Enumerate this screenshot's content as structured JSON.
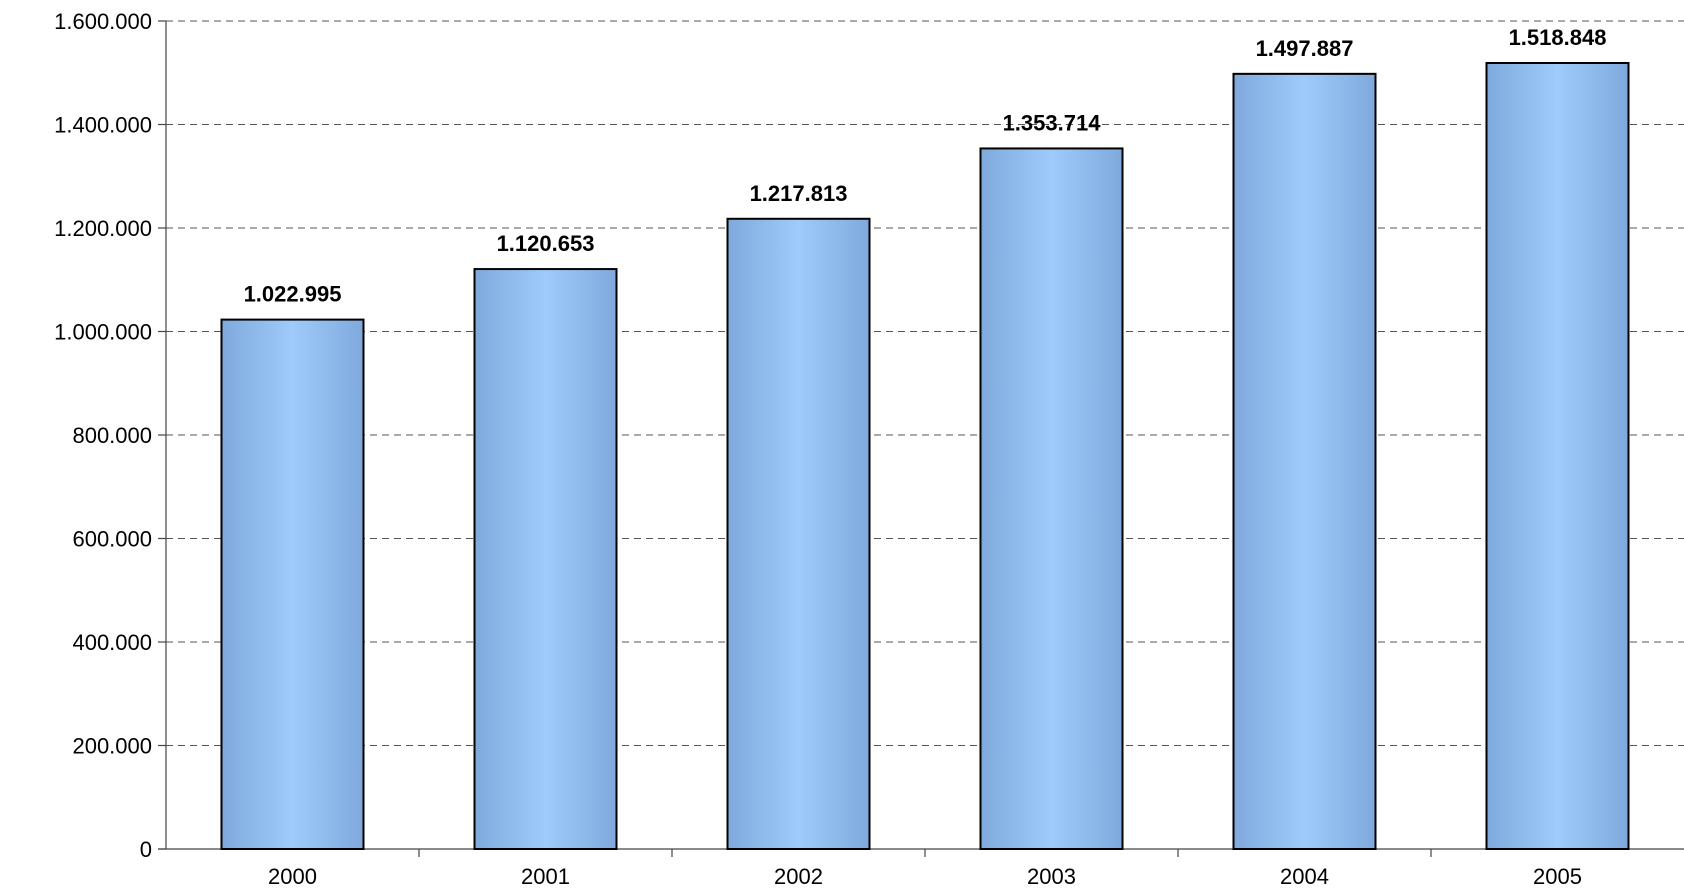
{
  "chart_data": {
    "type": "bar",
    "title": "",
    "xlabel": "",
    "ylabel": "",
    "categories": [
      "2000",
      "2001",
      "2002",
      "2003",
      "2004",
      "2005"
    ],
    "values": [
      1022995,
      1120653,
      1217813,
      1353714,
      1497887,
      1518848
    ],
    "value_labels": [
      "1.022.995",
      "1.120.653",
      "1.217.813",
      "1.353.714",
      "1.497.887",
      "1.518.848"
    ],
    "ylim": [
      0,
      1600000
    ],
    "y_ticks": [
      0,
      200000,
      400000,
      600000,
      800000,
      1000000,
      1200000,
      1400000,
      1600000
    ],
    "y_tick_labels": [
      "0",
      "200.000",
      "400.000",
      "600.000",
      "800.000",
      "1.000.000",
      "1.200.000",
      "1.400.000",
      "1.600.000"
    ],
    "grid": "horizontal dashed",
    "legend": "none",
    "colors": {
      "bar_edge": "#7fa9dc",
      "bar_center": "#9ecbfb",
      "bar_outline": "#000000",
      "grid": "#555555",
      "axis": "#444444",
      "text": "#000000"
    }
  }
}
